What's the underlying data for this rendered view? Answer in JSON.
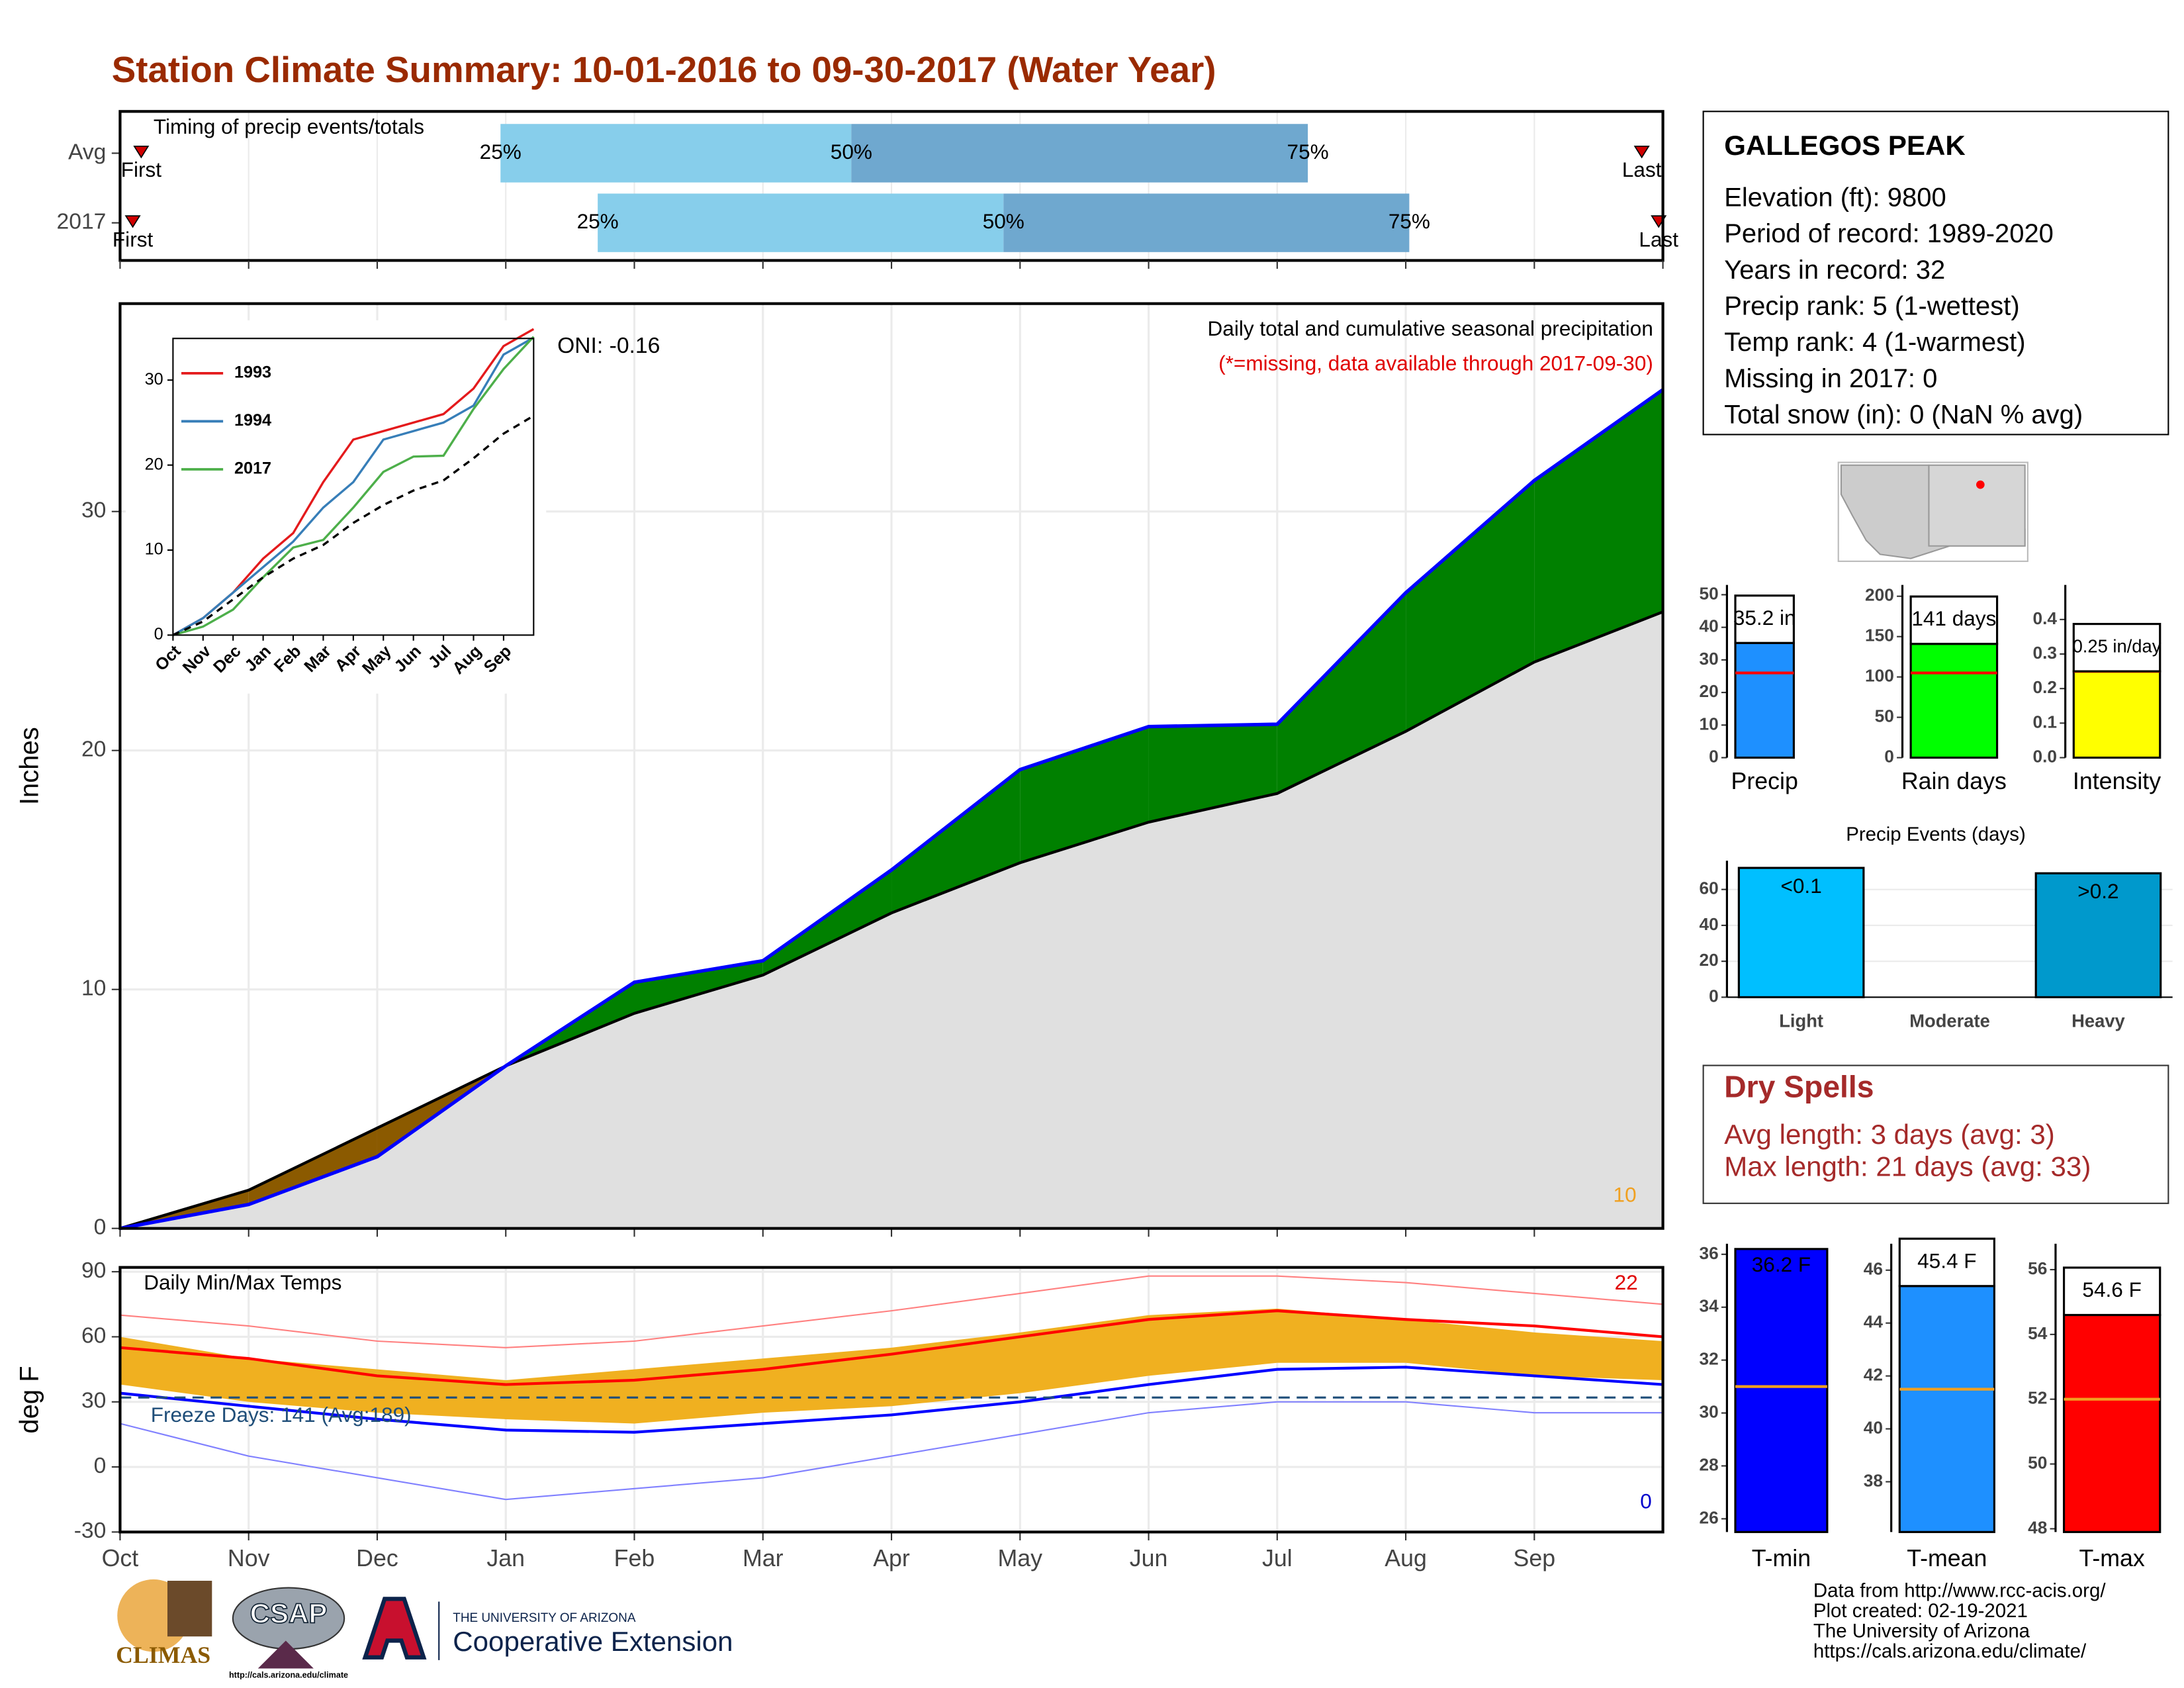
{
  "header": {
    "title": "Station Climate Summary: 10-01-2016 to 09-30-2017 (Water Year)"
  },
  "chart_data": [
    {
      "type": "timeline",
      "title": "Timing of precip events/totals",
      "xlim": [
        0,
        365
      ],
      "rows": [
        {
          "name": "Avg",
          "first": 5,
          "q25": 90,
          "q50": 173,
          "q75": 281,
          "last": 360
        },
        {
          "name": "2017",
          "first": 3,
          "q25": 113,
          "q50": 209,
          "q75": 305,
          "last": 364
        }
      ],
      "labels": {
        "first": "First",
        "last": "Last",
        "q25": "25%",
        "q50": "50%",
        "q75": "75%"
      },
      "colors": [
        "#87ceeb",
        "#6fa8cf"
      ],
      "marker_color": "#d00000"
    },
    {
      "type": "area",
      "title": "Daily total and cumulative seasonal precipitation",
      "subtitle": "(*=missing, data available through 2017-09-30)",
      "annotations": [
        "ONI: -0.16",
        "10"
      ],
      "ylabel": "Inches",
      "ylim": [
        0,
        38.7
      ],
      "yticks": [
        0,
        10,
        20,
        30
      ],
      "grid": true,
      "series": [
        {
          "color": "#0000ff",
          "values": [
            0,
            1.0,
            3.0,
            6.8,
            10.3,
            11.2,
            15.0,
            19.2,
            21.0,
            21.1,
            26.6,
            31.3,
            35.1
          ]
        },
        {
          "color": "#000000",
          "values": [
            0,
            1.6,
            4.2,
            6.8,
            9.0,
            10.6,
            13.2,
            15.3,
            17.0,
            18.2,
            20.8,
            23.7,
            25.8
          ]
        }
      ],
      "above_color": "#008000",
      "below_color": "#8b5a00",
      "base_color": "#e0e0e0"
    },
    {
      "type": "line",
      "categories": [
        "Oct",
        "Nov",
        "Dec",
        "Jan",
        "Feb",
        "Mar",
        "Apr",
        "May",
        "Jun",
        "Jul",
        "Aug",
        "Sep",
        null
      ],
      "ylim": [
        0,
        34.9
      ],
      "yticks": [
        0,
        10,
        20,
        30
      ],
      "series": [
        {
          "name": "1993",
          "color": "#e41a1c",
          "values": [
            0,
            2,
            5,
            9,
            12,
            18,
            23,
            24,
            25,
            26,
            29,
            34,
            36
          ]
        },
        {
          "name": "1994",
          "color": "#377eb8",
          "values": [
            0,
            2,
            5,
            8,
            11,
            15,
            18,
            23,
            24,
            25,
            27,
            33,
            35
          ]
        },
        {
          "name": "2017",
          "color": "#4daf4a",
          "values": [
            0,
            1.0,
            3.0,
            6.8,
            10.3,
            11.2,
            15.0,
            19.2,
            21.0,
            21.1,
            26.6,
            31.3,
            35.1
          ]
        },
        {
          "color": "#000000",
          "dash": true,
          "values": [
            0,
            1.6,
            4.2,
            6.8,
            9.0,
            10.6,
            13.2,
            15.3,
            17.0,
            18.2,
            20.8,
            23.7,
            25.8
          ]
        }
      ]
    },
    {
      "type": "temps",
      "title": "Daily Min/Max Temps",
      "ylabel": "deg F",
      "annotations": [
        "Freeze Days: 141 (Avg:189)",
        "22",
        "0"
      ],
      "categories": [
        "Oct",
        "Nov",
        "Dec",
        "Jan",
        "Feb",
        "Mar",
        "Apr",
        "May",
        "Jun",
        "Jul",
        "Aug",
        "Sep",
        null
      ],
      "ylim": [
        -30,
        92
      ],
      "yticks": [
        -30,
        0,
        30,
        60,
        90
      ],
      "grid": true,
      "freeze": 32,
      "obs_max": {
        "color": "#f0b020",
        "values": [
          60,
          50,
          45,
          40,
          45,
          50,
          55,
          62,
          70,
          73,
          68,
          62,
          58
        ]
      },
      "obs_min": {
        "color": "#f0b020",
        "values": [
          38,
          30,
          25,
          22,
          20,
          25,
          28,
          34,
          42,
          48,
          48,
          42,
          40
        ]
      },
      "avg_max": {
        "color": "#ff0000",
        "values": [
          55,
          50,
          42,
          38,
          40,
          45,
          52,
          60,
          68,
          72,
          68,
          65,
          60
        ]
      },
      "avg_min": {
        "color": "#0000ff",
        "values": [
          34,
          28,
          22,
          17,
          16,
          20,
          24,
          30,
          38,
          45,
          46,
          42,
          38
        ]
      },
      "record_max": {
        "color": "#ff8080",
        "values": [
          70,
          65,
          58,
          55,
          58,
          65,
          72,
          80,
          88,
          88,
          85,
          80,
          75
        ]
      },
      "record_min": {
        "color": "#8080ff",
        "values": [
          20,
          5,
          -5,
          -15,
          -10,
          -5,
          5,
          15,
          25,
          30,
          30,
          25,
          25
        ]
      }
    },
    {
      "type": "bar",
      "categories": [
        "Precip"
      ],
      "values": [
        35.2
      ],
      "value_labels": [
        "35.2 in"
      ],
      "average": 26,
      "avg_color": "#ff0000",
      "color": "#1e90ff",
      "ylim": [
        0,
        53
      ],
      "yticks": [
        0,
        10,
        20,
        30,
        40,
        50
      ]
    },
    {
      "type": "bar",
      "categories": [
        "Rain days"
      ],
      "values": [
        141
      ],
      "value_labels": [
        "141 days"
      ],
      "average": 105,
      "avg_color": "#ff0000",
      "color": "#00ff00",
      "ylim": [
        0,
        214
      ],
      "yticks": [
        0,
        50,
        100,
        150,
        200
      ]
    },
    {
      "type": "bar",
      "categories": [
        "Intensity"
      ],
      "values": [
        0.25
      ],
      "value_labels": [
        "0.25 in/day"
      ],
      "average": 0.25,
      "avg_color": "#ff0000",
      "color": "#ffff00",
      "ylim": [
        0,
        0.5
      ],
      "yticks": [
        {
          "value": 0,
          "label": "0.0"
        },
        0.1,
        0.2,
        0.3,
        0.4
      ]
    },
    {
      "type": "bar",
      "title": "Precip Events (days)",
      "categories": [
        "Light",
        "Moderate",
        "Heavy"
      ],
      "values": [
        72,
        0,
        69
      ],
      "bar_texts": [
        "<0.1",
        null,
        ">0.2"
      ],
      "colors": [
        "#00bfff",
        "#0099cc",
        "#0099cc"
      ],
      "ylim": [
        0,
        76
      ],
      "yticks": [
        0,
        20,
        40,
        60
      ],
      "grid": true
    },
    {
      "type": "bar",
      "categories": [
        "T-min"
      ],
      "values": [
        36.2
      ],
      "value_labels": [
        "36.2 F"
      ],
      "average": 31,
      "avg_color": "#f0a020",
      "color": "#0000ff",
      "ylim": [
        25.5,
        36.4
      ],
      "yticks": [
        26,
        28,
        30,
        32,
        34,
        36
      ]
    },
    {
      "type": "bar",
      "categories": [
        "T-mean"
      ],
      "values": [
        45.4
      ],
      "value_labels": [
        "45.4 F"
      ],
      "average": 41.5,
      "avg_color": "#f0a020",
      "color": "#1e90ff",
      "ylim": [
        36.1,
        47
      ],
      "yticks": [
        38,
        40,
        42,
        44,
        46
      ]
    },
    {
      "type": "bar",
      "categories": [
        "T-max"
      ],
      "values": [
        54.6
      ],
      "value_labels": [
        "54.6 F"
      ],
      "average": 52,
      "avg_color": "#f0a020",
      "color": "#ff0000",
      "ylim": [
        47.9,
        56.8
      ],
      "yticks": [
        48,
        50,
        52,
        54,
        56
      ]
    }
  ],
  "info": {
    "title": "GALLEGOS PEAK",
    "lines": [
      "Elevation (ft): 9800",
      "Period of record: 1989-2020",
      "Years in record: 32",
      "Precip rank: 5 (1-wettest)",
      "Temp rank: 4 (1-warmest)",
      "Missing in 2017: 0",
      "Total snow (in): 0 (NaN % avg)"
    ]
  },
  "dry_spells": {
    "title": "Dry Spells",
    "lines": [
      "Avg length: 3 days (avg: 3)",
      "Max length: 21 days (avg: 33)"
    ]
  },
  "footer": {
    "lines": [
      "Data from http://www.rcc-acis.org/",
      "Plot created: 02-19-2021",
      "The University of Arizona",
      "https://cals.arizona.edu/climate/"
    ]
  },
  "logos": {
    "climas": "CLIMAS",
    "csap": "CSAP",
    "csap_url": "http://cals.arizona.edu/climate",
    "ua": "THE UNIVERSITY OF ARIZONA",
    "extension": "Cooperative Extension"
  }
}
